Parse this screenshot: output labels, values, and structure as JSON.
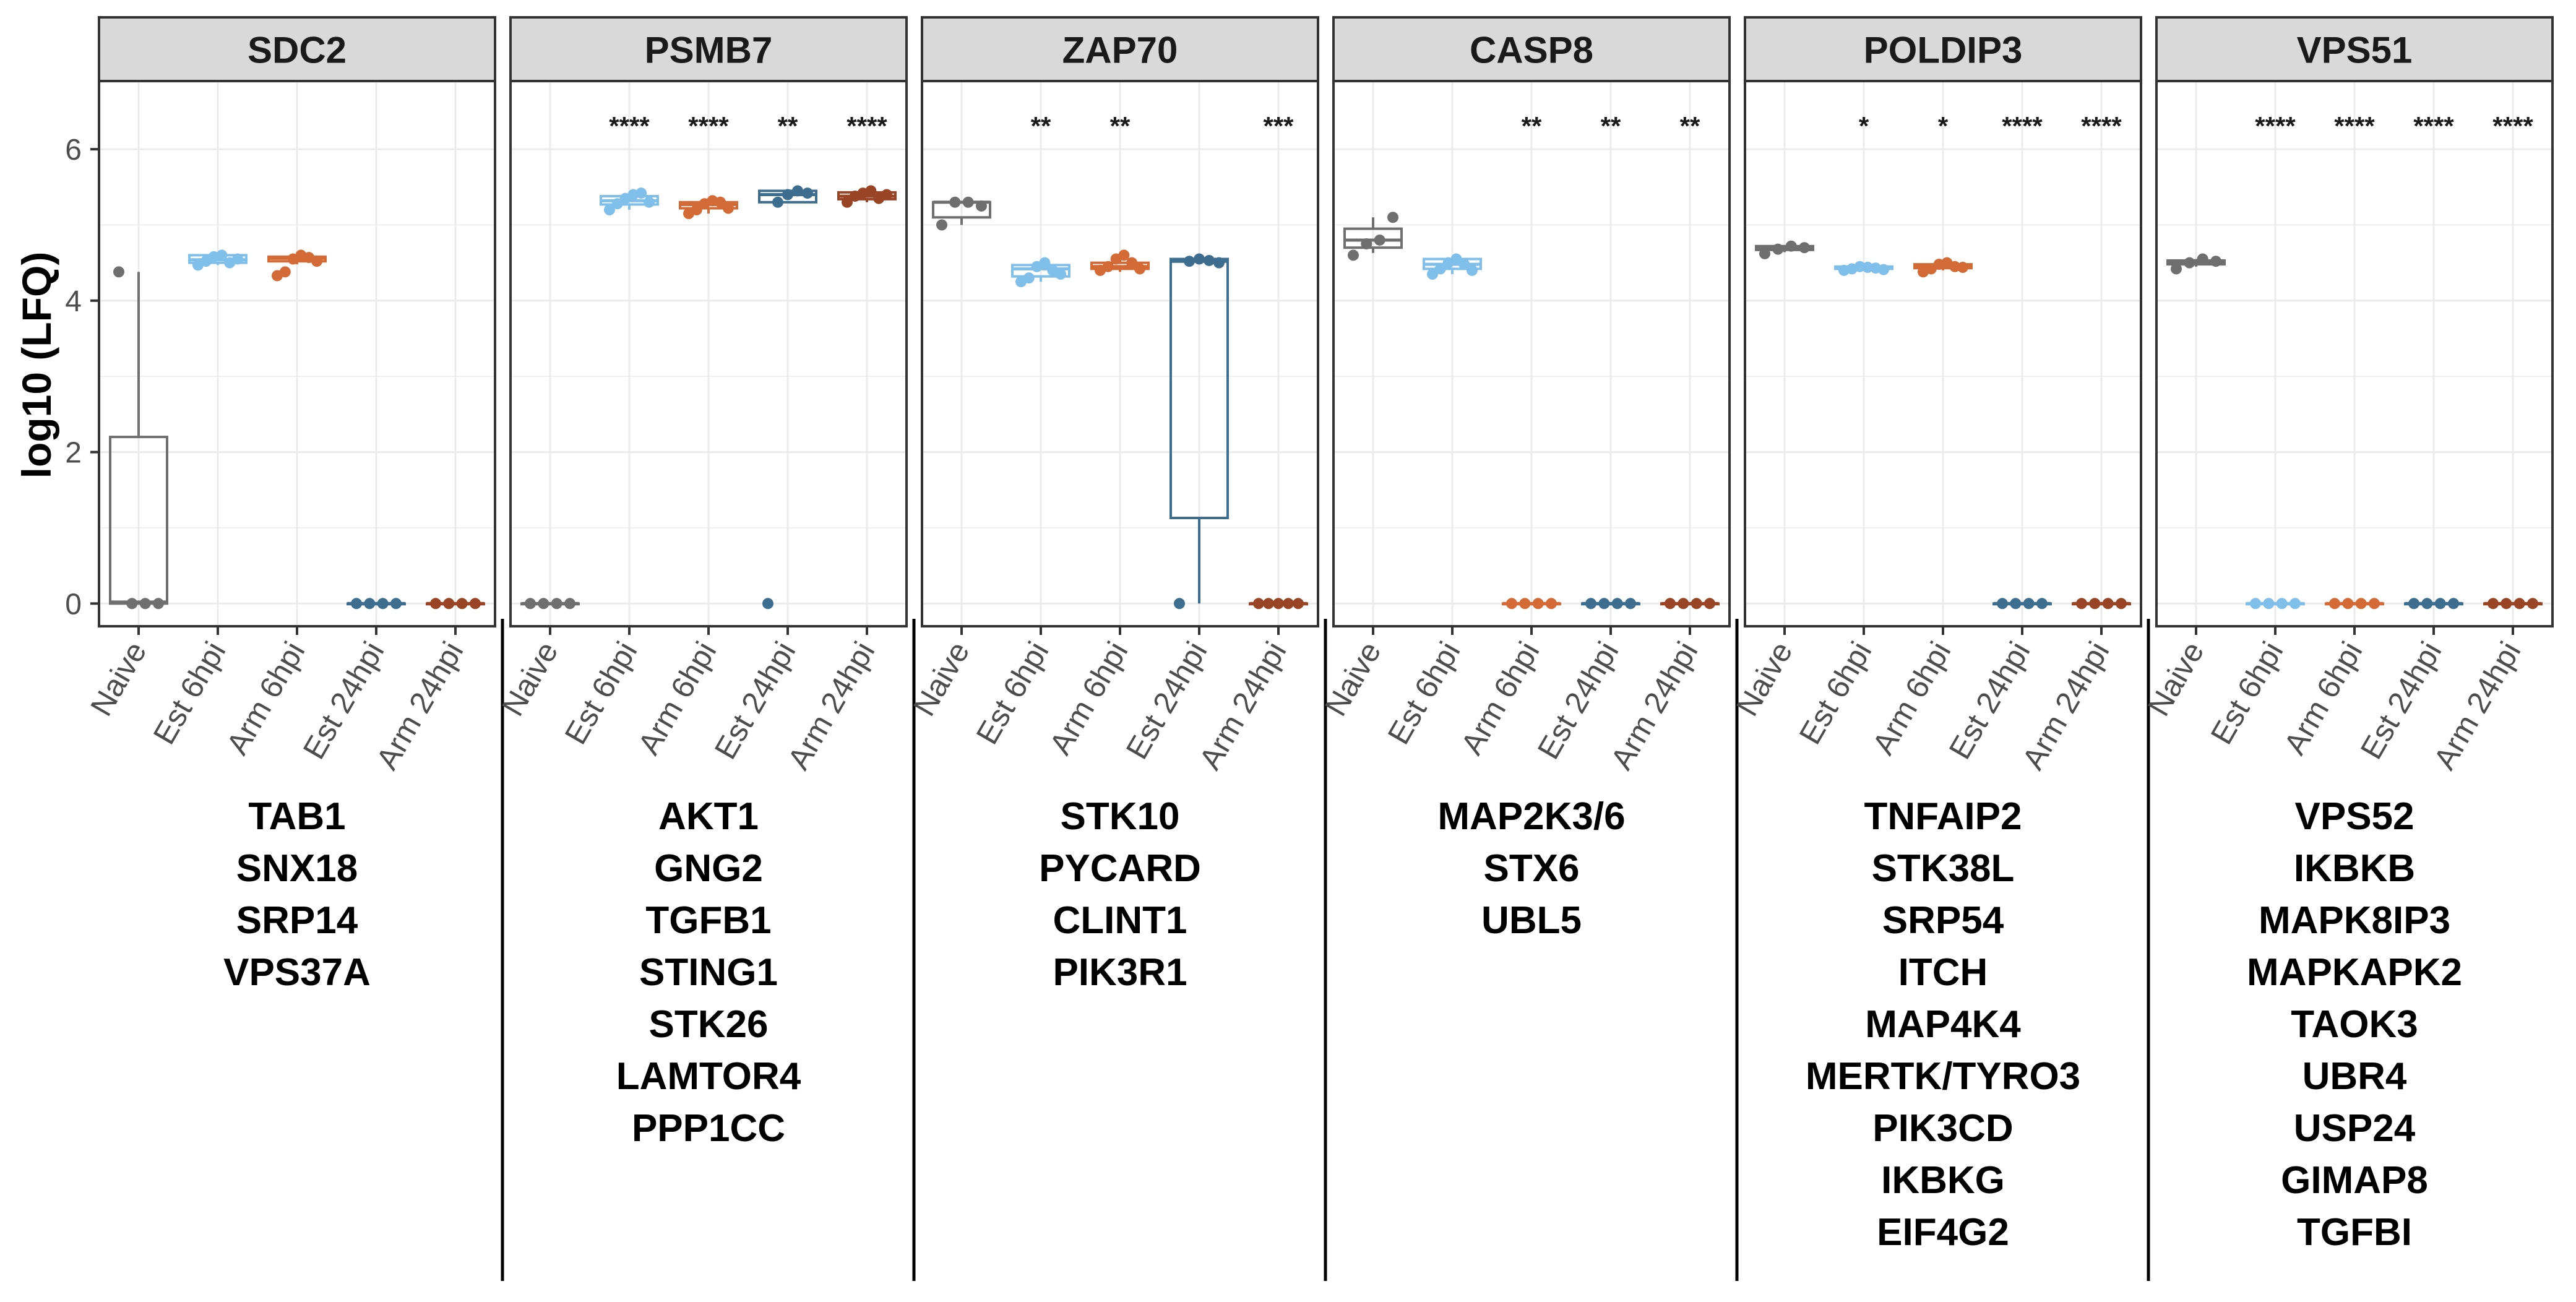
{
  "chart_data": {
    "type": "boxplot",
    "ylabel": "log10 (LFQ)",
    "ylim": [
      -0.3,
      6.9
    ],
    "yticks": [
      0,
      2,
      4,
      6
    ],
    "categories": [
      "Naive",
      "Est 6hpi",
      "Arm 6hpi",
      "Est 24hpi",
      "Arm 24hpi"
    ],
    "group_colors": {
      "Naive": "#6f6f6f",
      "Est 6hpi": "#7fbfea",
      "Arm 6hpi": "#d46a35",
      "Est 24hpi": "#3e6e8f",
      "Arm 24hpi": "#9a4426"
    },
    "panels": [
      {
        "title": "SDC2",
        "groups": [
          {
            "name": "Naive",
            "points": [
              4.38,
              0,
              0,
              0
            ],
            "box": [
              0,
              0,
              0.02,
              2.2,
              4.38
            ]
          },
          {
            "name": "Est 6hpi",
            "points": [
              4.47,
              4.52,
              4.58,
              4.6,
              4.5,
              4.55
            ],
            "box": [
              4.47,
              4.5,
              4.54,
              4.6,
              4.62
            ]
          },
          {
            "name": "Arm 6hpi",
            "points": [
              4.33,
              4.38,
              4.55,
              4.6,
              4.57,
              4.52
            ],
            "box": [
              4.48,
              4.52,
              4.56,
              4.58,
              4.6
            ]
          },
          {
            "name": "Est 24hpi",
            "points": [
              0,
              0,
              0,
              0
            ],
            "box": [
              0,
              0,
              0,
              0,
              0
            ]
          },
          {
            "name": "Arm 24hpi",
            "points": [
              0,
              0,
              0,
              0
            ],
            "box": [
              0,
              0,
              0,
              0,
              0
            ]
          }
        ],
        "significance": [
          "",
          "",
          "",
          "",
          ""
        ],
        "gene_list": [
          "TAB1",
          "SNX18",
          "SRP14",
          "VPS37A"
        ]
      },
      {
        "title": "PSMB7",
        "groups": [
          {
            "name": "Naive",
            "points": [
              0,
              0,
              0,
              0
            ],
            "box": [
              0,
              0,
              0,
              0,
              0
            ]
          },
          {
            "name": "Est 6hpi",
            "points": [
              5.2,
              5.28,
              5.35,
              5.4,
              5.42,
              5.3
            ],
            "box": [
              5.2,
              5.27,
              5.32,
              5.38,
              5.42
            ]
          },
          {
            "name": "Arm 6hpi",
            "points": [
              5.15,
              5.2,
              5.28,
              5.32,
              5.3,
              5.22
            ],
            "box": [
              5.15,
              5.22,
              5.27,
              5.3,
              5.33
            ]
          },
          {
            "name": "Est 24hpi",
            "points": [
              0,
              5.3,
              5.4,
              5.45,
              5.42
            ],
            "box": [
              5.3,
              5.3,
              5.4,
              5.45,
              5.45
            ]
          },
          {
            "name": "Arm 24hpi",
            "points": [
              5.3,
              5.38,
              5.42,
              5.45,
              5.35,
              5.4
            ],
            "box": [
              5.3,
              5.34,
              5.38,
              5.43,
              5.45
            ]
          }
        ],
        "significance": [
          "",
          "****",
          "****",
          "**",
          "****"
        ],
        "gene_list": [
          "AKT1",
          "GNG2",
          "TGFB1",
          "STING1",
          "STK26",
          "LAMTOR4",
          "PPP1CC"
        ]
      },
      {
        "title": "ZAP70",
        "groups": [
          {
            "name": "Naive",
            "points": [
              5.0,
              5.3,
              5.3,
              5.25
            ],
            "box": [
              5.0,
              5.1,
              5.3,
              5.3,
              5.3
            ]
          },
          {
            "name": "Est 6hpi",
            "points": [
              4.25,
              4.3,
              4.45,
              4.5,
              4.4,
              4.35
            ],
            "box": [
              4.25,
              4.32,
              4.42,
              4.47,
              4.52
            ]
          },
          {
            "name": "Arm 6hpi",
            "points": [
              4.4,
              4.45,
              4.55,
              4.6,
              4.5,
              4.42
            ],
            "box": [
              4.38,
              4.42,
              4.45,
              4.5,
              4.55
            ]
          },
          {
            "name": "Est 24hpi",
            "points": [
              0,
              4.52,
              4.55,
              4.53,
              4.5
            ],
            "box": [
              0,
              1.13,
              4.52,
              4.55,
              4.57
            ]
          },
          {
            "name": "Arm 24hpi",
            "points": [
              0,
              0,
              0,
              0,
              0
            ],
            "box": [
              0,
              0,
              0,
              0,
              0
            ]
          }
        ],
        "significance": [
          "",
          "**",
          "**",
          "",
          "***"
        ],
        "gene_list": [
          "STK10",
          "PYCARD",
          "CLINT1",
          "PIK3R1"
        ]
      },
      {
        "title": "CASP8",
        "groups": [
          {
            "name": "Naive",
            "points": [
              4.6,
              4.75,
              4.8,
              5.1
            ],
            "box": [
              4.63,
              4.7,
              4.8,
              4.95,
              5.1
            ]
          },
          {
            "name": "Est 6hpi",
            "points": [
              4.35,
              4.42,
              4.5,
              4.55,
              4.48,
              4.4
            ],
            "box": [
              4.35,
              4.42,
              4.48,
              4.55,
              4.57
            ]
          },
          {
            "name": "Arm 6hpi",
            "points": [
              0,
              0,
              0,
              0
            ],
            "box": [
              0,
              0,
              0,
              0,
              0
            ]
          },
          {
            "name": "Est 24hpi",
            "points": [
              0,
              0,
              0,
              0
            ],
            "box": [
              0,
              0,
              0,
              0,
              0
            ]
          },
          {
            "name": "Arm 24hpi",
            "points": [
              0,
              0,
              0,
              0
            ],
            "box": [
              0,
              0,
              0,
              0,
              0
            ]
          }
        ],
        "significance": [
          "",
          "",
          "**",
          "**",
          "**"
        ],
        "gene_list": [
          "MAP2K3/6",
          "STX6",
          "UBL5"
        ]
      },
      {
        "title": "POLDIP3",
        "groups": [
          {
            "name": "Naive",
            "points": [
              4.62,
              4.68,
              4.72,
              4.7
            ],
            "box": [
              4.64,
              4.67,
              4.7,
              4.72,
              4.73
            ]
          },
          {
            "name": "Est 6hpi",
            "points": [
              4.4,
              4.42,
              4.45,
              4.44,
              4.43,
              4.41
            ],
            "box": [
              4.4,
              4.42,
              4.43,
              4.45,
              4.46
            ]
          },
          {
            "name": "Arm 6hpi",
            "points": [
              4.38,
              4.42,
              4.48,
              4.5,
              4.45,
              4.44
            ],
            "box": [
              4.4,
              4.43,
              4.46,
              4.48,
              4.5
            ]
          },
          {
            "name": "Est 24hpi",
            "points": [
              0,
              0,
              0,
              0
            ],
            "box": [
              0,
              0,
              0,
              0,
              0
            ]
          },
          {
            "name": "Arm 24hpi",
            "points": [
              0,
              0,
              0,
              0
            ],
            "box": [
              0,
              0,
              0,
              0,
              0
            ]
          }
        ],
        "significance": [
          "",
          "*",
          "*",
          "****",
          "****"
        ],
        "gene_list": [
          "TNFAIP2",
          "STK38L",
          "SRP54",
          "ITCH",
          "MAP4K4",
          "MERTK/TYRO3",
          "PIK3CD",
          "IKBKG",
          "EIF4G2"
        ]
      },
      {
        "title": "VPS51",
        "groups": [
          {
            "name": "Naive",
            "points": [
              4.42,
              4.5,
              4.55,
              4.52
            ],
            "box": [
              4.45,
              4.48,
              4.5,
              4.53,
              4.55
            ]
          },
          {
            "name": "Est 6hpi",
            "points": [
              0,
              0,
              0,
              0
            ],
            "box": [
              0,
              0,
              0,
              0,
              0
            ]
          },
          {
            "name": "Arm 6hpi",
            "points": [
              0,
              0,
              0,
              0
            ],
            "box": [
              0,
              0,
              0,
              0,
              0
            ]
          },
          {
            "name": "Est 24hpi",
            "points": [
              0,
              0,
              0,
              0
            ],
            "box": [
              0,
              0,
              0,
              0,
              0
            ]
          },
          {
            "name": "Arm 24hpi",
            "points": [
              0,
              0,
              0,
              0
            ],
            "box": [
              0,
              0,
              0,
              0,
              0
            ]
          }
        ],
        "significance": [
          "",
          "****",
          "****",
          "****",
          "****"
        ],
        "gene_list": [
          "VPS52",
          "IKBKB",
          "MAPK8IP3",
          "MAPKAPK2",
          "TAOK3",
          "UBR4",
          "USP24",
          "GIMAP8",
          "TGFBI"
        ]
      }
    ]
  }
}
